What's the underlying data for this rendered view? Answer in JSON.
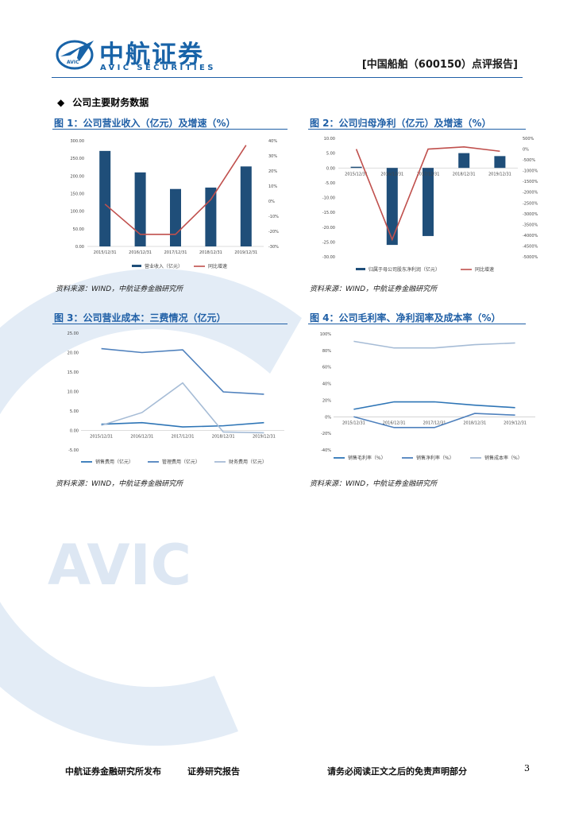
{
  "header": {
    "brand_cn": "中航证券",
    "brand_en": "AVIC SECURITIES",
    "report_tag": "[中国船舶（600150）点评报告]"
  },
  "watermark": {
    "text": "AVIC"
  },
  "section": {
    "bullet": "◆",
    "title": "公司主要财务数据"
  },
  "figures": [
    {
      "title": "图 1：公司营业收入（亿元）及增速（%）",
      "source": "资料来源：WIND，中航证券金融研究所",
      "chart_data": {
        "type": "bar",
        "categories": [
          "2015/12/31",
          "2016/12/31",
          "2017/12/31",
          "2018/12/31",
          "2019/12/31"
        ],
        "series": [
          {
            "name": "营业收入（亿元）",
            "type": "bar",
            "axis": "left",
            "values": [
              271,
              210,
              163,
              167,
              227
            ]
          },
          {
            "name": "同比增速",
            "type": "line",
            "axis": "right",
            "values": [
              -2,
              -22,
              -22,
              1,
              37
            ]
          }
        ],
        "yticks_left": [
          "300.00",
          "250.00",
          "200.00",
          "150.00",
          "100.00",
          "50.00",
          "0.00"
        ],
        "ylim_left": [
          0,
          300
        ],
        "yticks_right": [
          "40%",
          "30%",
          "20%",
          "10%",
          "0%",
          "-10%",
          "-20%",
          "-30%"
        ],
        "ylim_right": [
          -30,
          40
        ]
      }
    },
    {
      "title": "图 2：公司归母净利（亿元）及增速（%）",
      "source": "资料来源：WIND，中航证券金融研究所",
      "chart_data": {
        "type": "bar",
        "categories": [
          "2015/12/31",
          "2016/12/31",
          "2017/12/31",
          "2018/12/31",
          "2019/12/31"
        ],
        "series": [
          {
            "name": "归属于母公司股东净利润（亿元）",
            "type": "bar",
            "axis": "left",
            "values": [
              0.4,
              -26,
              -23,
              5,
              4
            ]
          },
          {
            "name": "同比增速",
            "type": "line",
            "axis": "right",
            "values": [
              0,
              -4200,
              0,
              100,
              -100
            ]
          }
        ],
        "yticks_left": [
          "10.00",
          "5.00",
          "0.00",
          "-5.00",
          "-10.00",
          "-15.00",
          "-20.00",
          "-25.00",
          "-30.00"
        ],
        "ylim_left": [
          -30,
          10
        ],
        "yticks_right": [
          "500%",
          "0%",
          "-500%",
          "-1000%",
          "-1500%",
          "-2000%",
          "-2500%",
          "-3000%",
          "-3500%",
          "-4000%",
          "-4500%",
          "-5000%"
        ],
        "ylim_right": [
          -5000,
          500
        ]
      }
    },
    {
      "title": "图 3：公司营业成本：三费情况（亿元）",
      "source": "资料来源：WIND，中航证券金融研究所",
      "chart_data": {
        "type": "line",
        "categories": [
          "2015/12/31",
          "2016/12/31",
          "2017/12/31",
          "2018/12/31",
          "2019/12/31"
        ],
        "series": [
          {
            "name": "销售费用（亿元）",
            "values": [
              1.6,
              2.0,
              0.9,
              1.2,
              2.0
            ]
          },
          {
            "name": "管理费用（亿元）",
            "values": [
              21.0,
              20.0,
              20.7,
              9.9,
              9.3
            ]
          },
          {
            "name": "财务费用（亿元）",
            "values": [
              1.3,
              4.6,
              12.2,
              -0.4,
              -0.6
            ]
          }
        ],
        "yticks": [
          "25.00",
          "20.00",
          "15.00",
          "10.00",
          "5.00",
          "0.00",
          "-5.00"
        ],
        "ylim": [
          -5,
          25
        ]
      }
    },
    {
      "title": "图 4：公司毛利率、净利润率及成本率（%）",
      "source": "资料来源：WIND，中航证券金融研究所",
      "chart_data": {
        "type": "line",
        "categories": [
          "2015/12/31",
          "2016/12/31",
          "2017/12/31",
          "2018/12/31",
          "2019/12/31"
        ],
        "series": [
          {
            "name": "销售毛利率（%）",
            "values": [
              9,
              18,
              18,
              14,
              11
            ]
          },
          {
            "name": "销售净利率（%）",
            "values": [
              0,
              -13,
              -13,
              4,
              2
            ]
          },
          {
            "name": "销售成本率（%）",
            "values": [
              91,
              83,
              83,
              87,
              89
            ]
          }
        ],
        "yticks": [
          "100%",
          "80%",
          "60%",
          "40%",
          "20%",
          "0%",
          "-20%",
          "-40%"
        ],
        "ylim": [
          -40,
          100
        ]
      }
    }
  ],
  "footer": {
    "publisher": "中航证券金融研究所发布",
    "report_type": "证券研究报告",
    "disclaimer": "请务必阅读正文之后的免责声明部分",
    "page": "3"
  },
  "colors": {
    "brand_blue": "#1863a8",
    "bar_navy": "#1f4e79",
    "line_red": "#c0504d",
    "line_mid": "#2e75b6",
    "line_light": "#a6bcd6",
    "watermark": "#e3ecf6"
  }
}
